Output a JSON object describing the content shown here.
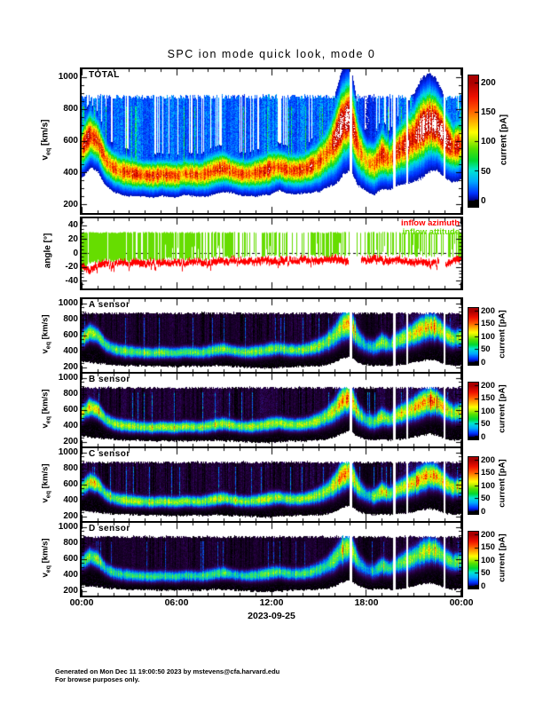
{
  "title": "SPC ion mode quick look, mode 0",
  "x_axis": {
    "tick_labels": [
      "00:00",
      "06:00",
      "12:00",
      "18:00",
      "00:00"
    ],
    "tick_hours": [
      0,
      6,
      12,
      18,
      24
    ],
    "minor_tick_hours": 1,
    "date_label": "2023-09-25",
    "range_hours": [
      0,
      24
    ]
  },
  "velocity_axis": {
    "ylabel_main": "v",
    "ylabel_sub": "eq",
    "ylabel_unit": " [km/s]",
    "tick_labels": [
      "200",
      "400",
      "600",
      "800",
      "1000"
    ],
    "tick_values": [
      200,
      400,
      600,
      800,
      1000
    ],
    "minor_step_kms": 50,
    "range_kms": [
      150,
      1050
    ]
  },
  "angle_axis": {
    "ylabel": "angle [°]",
    "tick_labels": [
      "-40",
      "-20",
      "0",
      "20",
      "40"
    ],
    "tick_values": [
      -40,
      -20,
      0,
      20,
      40
    ],
    "minor_step_deg": 5,
    "range_deg": [
      -50,
      50
    ]
  },
  "colorbar": {
    "label": "current [pA]",
    "ticks": [
      "0",
      "50",
      "100",
      "150",
      "200"
    ],
    "tick_values": [
      0,
      50,
      100,
      150,
      200
    ],
    "range_pA": [
      0,
      200
    ]
  },
  "footer": {
    "line1": "Generated on Mon Dec 11 19:00:50 2023 by mstevens@cfa.harvard.edu",
    "line2": "For browse purposes only."
  },
  "colors": {
    "background": "#FFFFFF",
    "frame": "#000000",
    "azimuth_red": "#FF0000",
    "attitude_green": "#66DD00",
    "colormap_light": [
      [
        0.0,
        "#000085"
      ],
      [
        0.06,
        "#0030FF"
      ],
      [
        0.16,
        "#00A8FF"
      ],
      [
        0.26,
        "#00E8D0"
      ],
      [
        0.34,
        "#00D830"
      ],
      [
        0.44,
        "#55E000"
      ],
      [
        0.52,
        "#C0F000"
      ],
      [
        0.58,
        "#FFFF00"
      ],
      [
        0.68,
        "#FFA800"
      ],
      [
        0.78,
        "#FF5000"
      ],
      [
        0.88,
        "#EE1000"
      ],
      [
        1.0,
        "#AA0000"
      ]
    ],
    "colormap_dark": [
      [
        0.0,
        "#000000"
      ],
      [
        0.05,
        "#150025"
      ],
      [
        0.11,
        "#2E0050"
      ],
      [
        0.18,
        "#251F8F"
      ],
      [
        0.27,
        "#0055FF"
      ],
      [
        0.36,
        "#00B8D8"
      ],
      [
        0.45,
        "#20E080"
      ],
      [
        0.55,
        "#70F020"
      ],
      [
        0.63,
        "#D8FF00"
      ],
      [
        0.7,
        "#FFE000"
      ],
      [
        0.8,
        "#FF8000"
      ],
      [
        0.9,
        "#FF2000"
      ],
      [
        1.0,
        "#C00000"
      ]
    ]
  },
  "chart_data": [
    {
      "type": "heatmap",
      "id": "total",
      "title": "TOTAL",
      "x_unit": "hours of 2023-09-25",
      "x_range": [
        0,
        24
      ],
      "y_label": "v_eq [km/s]",
      "y_range": [
        150,
        1050
      ],
      "value_label": "current [pA]",
      "value_range": [
        0,
        200
      ],
      "series": {
        "t_step_hours": 0.5,
        "ridge_speed_kms": [
          560,
          640,
          600,
          480,
          430,
          410,
          400,
          390,
          385,
          380,
          390,
          385,
          380,
          395,
          390,
          385,
          400,
          420,
          430,
          410,
          395,
          390,
          400,
          410,
          430,
          440,
          420,
          415,
          420,
          440,
          470,
          520,
          600,
          720,
          760,
          560,
          470,
          450,
          520,
          480,
          540,
          580,
          620,
          680,
          720,
          700,
          620,
          560,
          580
        ],
        "peak_current_pA": [
          170,
          200,
          180,
          150,
          160,
          170,
          175,
          170,
          165,
          170,
          175,
          170,
          165,
          170,
          165,
          160,
          170,
          180,
          175,
          165,
          160,
          165,
          170,
          175,
          180,
          170,
          165,
          170,
          175,
          180,
          170,
          160,
          190,
          225,
          235,
          160,
          120,
          140,
          190,
          150,
          180,
          200,
          210,
          230,
          235,
          220,
          200,
          180,
          190
        ],
        "ridge_width_kms": [
          70,
          75,
          70,
          60,
          55,
          55,
          55,
          50,
          50,
          50,
          50,
          50,
          50,
          50,
          50,
          50,
          55,
          55,
          55,
          50,
          50,
          50,
          55,
          55,
          60,
          55,
          55,
          55,
          55,
          60,
          70,
          80,
          100,
          120,
          120,
          90,
          70,
          70,
          80,
          70,
          80,
          90,
          100,
          110,
          110,
          100,
          90,
          80,
          80
        ],
        "lower_extent_kms": [
          310,
          300,
          290,
          280,
          270,
          265,
          260,
          260,
          255,
          255,
          250,
          250,
          250,
          255,
          250,
          250,
          255,
          260,
          255,
          250,
          245,
          240,
          235,
          230,
          230,
          240,
          245,
          250,
          250,
          255,
          260,
          270,
          300,
          350,
          380,
          300,
          270,
          260,
          270,
          260,
          270,
          280,
          300,
          320,
          340,
          320,
          280,
          260,
          270
        ],
        "upper_extent_kms": 880,
        "data_gaps_hours": [
          [
            16.95,
            17.12
          ],
          [
            19.72,
            19.85
          ],
          [
            20.55,
            20.68
          ],
          [
            22.9,
            23.03
          ]
        ]
      }
    },
    {
      "type": "line",
      "id": "angle",
      "y_label": "angle [deg]",
      "y_range": [
        -50,
        50
      ],
      "series": {
        "t_step_hours": 0.5,
        "inflow_azimuth_deg": [
          -20,
          -26,
          -16,
          -14,
          -16,
          -13,
          -15,
          -14,
          -16,
          -13,
          -14,
          -15,
          -13,
          -14,
          -12,
          -13,
          -14,
          -11,
          -12,
          -10,
          -12,
          -11,
          -13,
          -10,
          -11,
          -12,
          -10,
          -11,
          -9,
          -10,
          -12,
          -9,
          -8,
          -10,
          -12,
          -9,
          -11,
          -8,
          -10,
          -12,
          -9,
          -12,
          -14,
          -11,
          -15,
          -13,
          -17,
          -11,
          -8
        ],
        "inflow_attitude_top_deg": 30,
        "inflow_attitude_bottom_deg": [
          -25,
          -14,
          -12,
          -10,
          -11,
          -9,
          -12,
          -10,
          -11,
          -9,
          -10,
          -8,
          -9,
          -10,
          -8,
          -9,
          -8,
          -6,
          -7,
          -5,
          -6,
          -4,
          -5,
          -6,
          -4,
          -5,
          -3,
          -4,
          -5,
          -3,
          -4,
          -5,
          -3,
          -4,
          -5,
          -4,
          -3,
          -5,
          -4,
          -3,
          -5,
          -4,
          -3,
          -5,
          -4,
          -3,
          -5,
          -4,
          -4
        ],
        "attitude_duty_cycle": [
          1,
          0.98,
          0.95,
          0.95,
          0.95,
          0.9,
          0.95,
          0.9,
          0.95,
          0.9,
          0.85,
          0.9,
          0.8,
          0.85,
          0.8,
          0.75,
          0.6,
          0.7,
          0.55,
          0.65,
          0.75,
          0.6,
          0.5,
          0.55,
          0.45,
          0.5,
          0.35,
          0.3,
          0.35,
          0.5,
          0.7,
          0.75,
          0.85,
          0.3,
          0.15,
          0.4,
          0.5,
          0.55,
          0.6,
          0.5,
          0.55,
          0.5,
          0.6,
          0.55,
          0.5,
          0.45,
          0.6,
          0.7,
          0.8
        ],
        "azimuth_gaps_hours": [
          [
            16.9,
            17.65
          ],
          [
            22.6,
            23.0
          ]
        ]
      },
      "legend": [
        {
          "label": "inflow azimuth",
          "color": "#FF0000"
        },
        {
          "label": "inflow attitude",
          "color": "#66DD00"
        }
      ]
    },
    {
      "type": "heatmap",
      "id": "a_sensor",
      "title": "A sensor",
      "same_series_as": "total",
      "intensity_factor": 0.62,
      "value_range": [
        0,
        200
      ]
    },
    {
      "type": "heatmap",
      "id": "b_sensor",
      "title": "B sensor",
      "same_series_as": "total",
      "intensity_factor": 0.7,
      "value_range": [
        0,
        200
      ]
    },
    {
      "type": "heatmap",
      "id": "c_sensor",
      "title": "C sensor",
      "same_series_as": "total",
      "intensity_factor": 0.68,
      "value_range": [
        0,
        200
      ]
    },
    {
      "type": "heatmap",
      "id": "d_sensor",
      "title": "D sensor",
      "same_series_as": "total",
      "intensity_factor": 0.55,
      "value_range": [
        0,
        200
      ]
    }
  ]
}
